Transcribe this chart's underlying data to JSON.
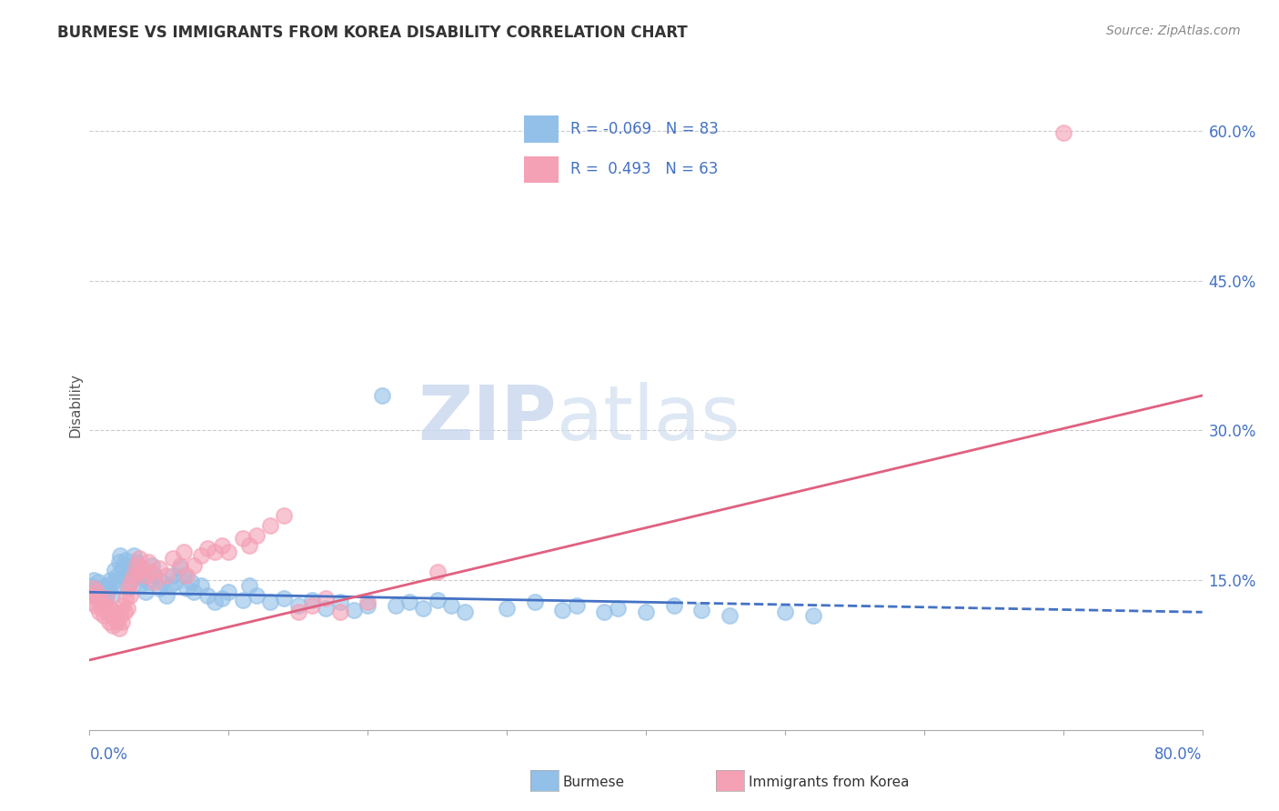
{
  "title": "BURMESE VS IMMIGRANTS FROM KOREA DISABILITY CORRELATION CHART",
  "source": "Source: ZipAtlas.com",
  "ylabel": "Disability",
  "right_yticks": [
    0.15,
    0.3,
    0.45,
    0.6
  ],
  "right_yticklabels": [
    "15.0%",
    "30.0%",
    "45.0%",
    "60.0%"
  ],
  "xmin": 0.0,
  "xmax": 0.8,
  "ymin": 0.0,
  "ymax": 0.65,
  "burmese_color": "#92c0e8",
  "korea_color": "#f4a0b5",
  "trendline_blue": "#4472c4",
  "trendline_pink": "#e06080",
  "burmese_R": -0.069,
  "burmese_N": 83,
  "korea_R": 0.493,
  "korea_N": 63,
  "blue_trend_start": 0.138,
  "blue_trend_end": 0.118,
  "pink_trend_start": 0.07,
  "pink_trend_end": 0.335,
  "burmese_scatter": [
    [
      0.001,
      0.145
    ],
    [
      0.002,
      0.138
    ],
    [
      0.003,
      0.15
    ],
    [
      0.004,
      0.135
    ],
    [
      0.005,
      0.142
    ],
    [
      0.006,
      0.148
    ],
    [
      0.007,
      0.13
    ],
    [
      0.008,
      0.14
    ],
    [
      0.009,
      0.135
    ],
    [
      0.01,
      0.132
    ],
    [
      0.011,
      0.128
    ],
    [
      0.012,
      0.145
    ],
    [
      0.013,
      0.138
    ],
    [
      0.014,
      0.142
    ],
    [
      0.015,
      0.15
    ],
    [
      0.016,
      0.135
    ],
    [
      0.017,
      0.148
    ],
    [
      0.018,
      0.16
    ],
    [
      0.019,
      0.145
    ],
    [
      0.02,
      0.155
    ],
    [
      0.021,
      0.168
    ],
    [
      0.022,
      0.175
    ],
    [
      0.023,
      0.162
    ],
    [
      0.024,
      0.158
    ],
    [
      0.025,
      0.165
    ],
    [
      0.026,
      0.17
    ],
    [
      0.027,
      0.145
    ],
    [
      0.028,
      0.155
    ],
    [
      0.029,
      0.148
    ],
    [
      0.03,
      0.162
    ],
    [
      0.032,
      0.175
    ],
    [
      0.034,
      0.168
    ],
    [
      0.035,
      0.155
    ],
    [
      0.036,
      0.145
    ],
    [
      0.038,
      0.152
    ],
    [
      0.04,
      0.138
    ],
    [
      0.042,
      0.148
    ],
    [
      0.045,
      0.165
    ],
    [
      0.047,
      0.155
    ],
    [
      0.05,
      0.142
    ],
    [
      0.052,
      0.148
    ],
    [
      0.055,
      0.135
    ],
    [
      0.058,
      0.145
    ],
    [
      0.06,
      0.155
    ],
    [
      0.062,
      0.148
    ],
    [
      0.065,
      0.162
    ],
    [
      0.068,
      0.155
    ],
    [
      0.07,
      0.142
    ],
    [
      0.073,
      0.148
    ],
    [
      0.075,
      0.138
    ],
    [
      0.08,
      0.145
    ],
    [
      0.085,
      0.135
    ],
    [
      0.09,
      0.128
    ],
    [
      0.095,
      0.132
    ],
    [
      0.1,
      0.138
    ],
    [
      0.11,
      0.13
    ],
    [
      0.115,
      0.145
    ],
    [
      0.12,
      0.135
    ],
    [
      0.13,
      0.128
    ],
    [
      0.14,
      0.132
    ],
    [
      0.15,
      0.125
    ],
    [
      0.16,
      0.13
    ],
    [
      0.17,
      0.122
    ],
    [
      0.18,
      0.128
    ],
    [
      0.19,
      0.12
    ],
    [
      0.2,
      0.125
    ],
    [
      0.21,
      0.335
    ],
    [
      0.22,
      0.125
    ],
    [
      0.23,
      0.128
    ],
    [
      0.24,
      0.122
    ],
    [
      0.25,
      0.13
    ],
    [
      0.26,
      0.125
    ],
    [
      0.27,
      0.118
    ],
    [
      0.3,
      0.122
    ],
    [
      0.32,
      0.128
    ],
    [
      0.34,
      0.12
    ],
    [
      0.35,
      0.125
    ],
    [
      0.37,
      0.118
    ],
    [
      0.38,
      0.122
    ],
    [
      0.4,
      0.118
    ],
    [
      0.42,
      0.125
    ],
    [
      0.44,
      0.12
    ],
    [
      0.46,
      0.115
    ],
    [
      0.5,
      0.118
    ],
    [
      0.52,
      0.115
    ]
  ],
  "korea_scatter": [
    [
      0.001,
      0.135
    ],
    [
      0.002,
      0.128
    ],
    [
      0.003,
      0.142
    ],
    [
      0.004,
      0.125
    ],
    [
      0.005,
      0.138
    ],
    [
      0.006,
      0.132
    ],
    [
      0.007,
      0.118
    ],
    [
      0.008,
      0.128
    ],
    [
      0.009,
      0.122
    ],
    [
      0.01,
      0.115
    ],
    [
      0.011,
      0.125
    ],
    [
      0.012,
      0.132
    ],
    [
      0.013,
      0.118
    ],
    [
      0.014,
      0.108
    ],
    [
      0.015,
      0.122
    ],
    [
      0.016,
      0.115
    ],
    [
      0.017,
      0.105
    ],
    [
      0.018,
      0.118
    ],
    [
      0.019,
      0.112
    ],
    [
      0.02,
      0.108
    ],
    [
      0.021,
      0.102
    ],
    [
      0.022,
      0.115
    ],
    [
      0.023,
      0.108
    ],
    [
      0.024,
      0.125
    ],
    [
      0.025,
      0.118
    ],
    [
      0.026,
      0.132
    ],
    [
      0.027,
      0.122
    ],
    [
      0.028,
      0.142
    ],
    [
      0.029,
      0.135
    ],
    [
      0.03,
      0.148
    ],
    [
      0.032,
      0.155
    ],
    [
      0.034,
      0.165
    ],
    [
      0.035,
      0.158
    ],
    [
      0.036,
      0.172
    ],
    [
      0.038,
      0.162
    ],
    [
      0.04,
      0.155
    ],
    [
      0.042,
      0.168
    ],
    [
      0.045,
      0.158
    ],
    [
      0.047,
      0.148
    ],
    [
      0.05,
      0.162
    ],
    [
      0.055,
      0.155
    ],
    [
      0.06,
      0.172
    ],
    [
      0.065,
      0.165
    ],
    [
      0.068,
      0.178
    ],
    [
      0.07,
      0.155
    ],
    [
      0.075,
      0.165
    ],
    [
      0.08,
      0.175
    ],
    [
      0.085,
      0.182
    ],
    [
      0.09,
      0.178
    ],
    [
      0.095,
      0.185
    ],
    [
      0.1,
      0.178
    ],
    [
      0.11,
      0.192
    ],
    [
      0.115,
      0.185
    ],
    [
      0.12,
      0.195
    ],
    [
      0.13,
      0.205
    ],
    [
      0.14,
      0.215
    ],
    [
      0.15,
      0.118
    ],
    [
      0.16,
      0.125
    ],
    [
      0.17,
      0.132
    ],
    [
      0.18,
      0.118
    ],
    [
      0.2,
      0.128
    ],
    [
      0.25,
      0.158
    ],
    [
      0.7,
      0.598
    ]
  ]
}
